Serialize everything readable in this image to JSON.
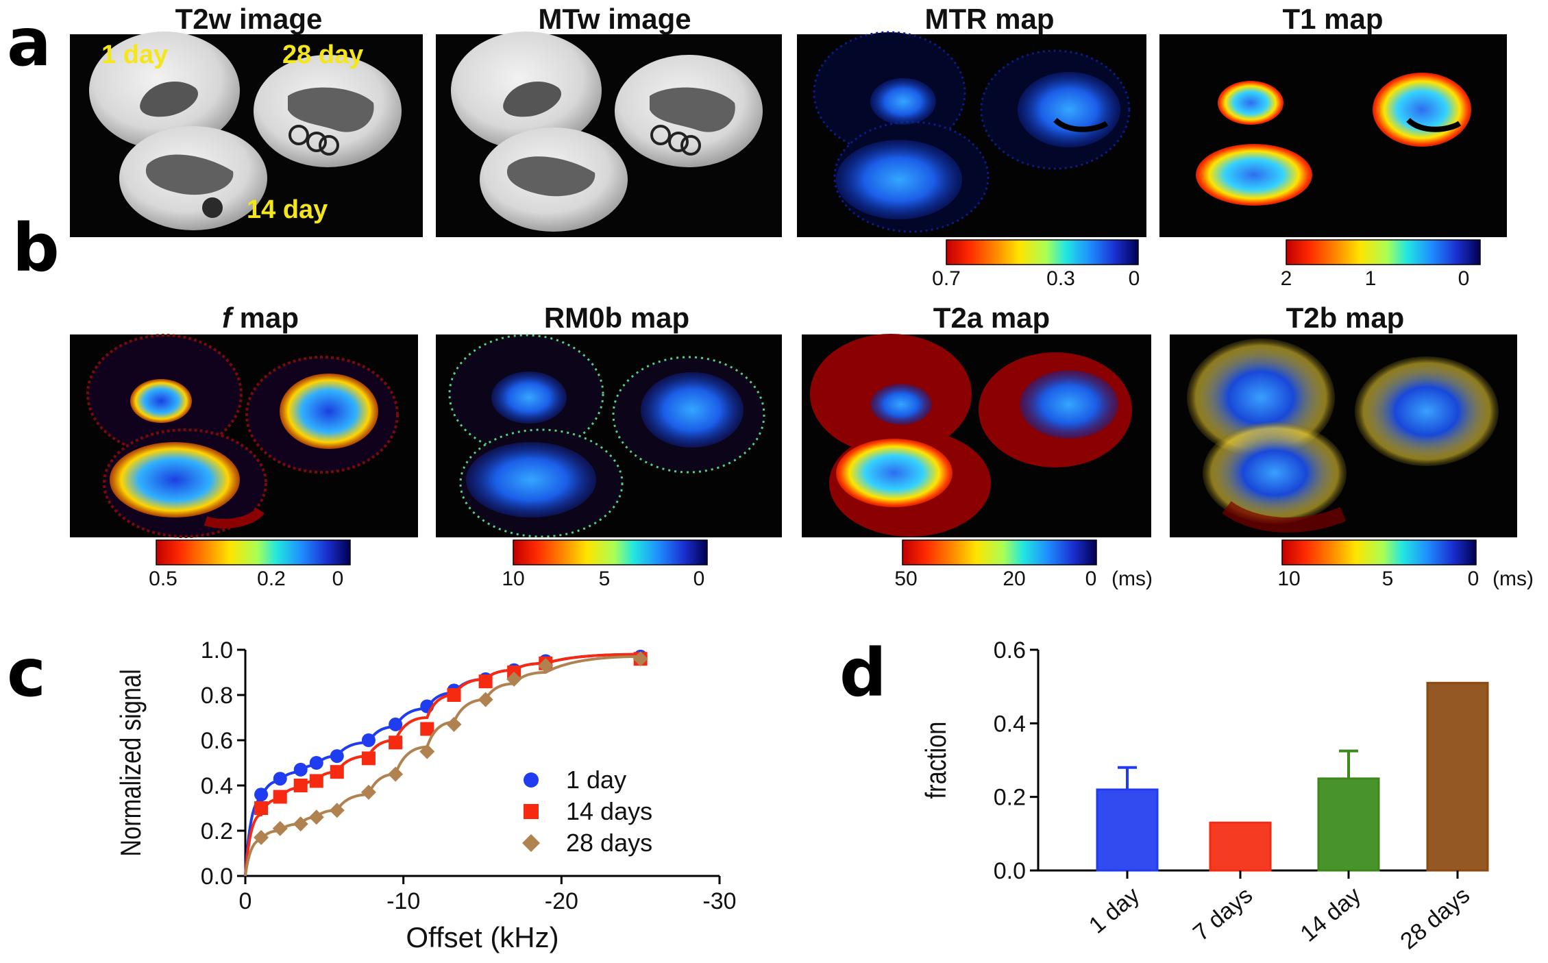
{
  "panel_letters": {
    "a": "a",
    "b": "b",
    "c": "c",
    "d": "d"
  },
  "row_a": {
    "titles": [
      "T2w image",
      "MTw  image",
      "MTR map",
      "T1 map"
    ],
    "labels": {
      "day1": "1 day",
      "day28": "28 day",
      "day14": "14 day"
    },
    "colorbars": [
      {
        "ticks": [
          "0.7",
          "0.3",
          "0"
        ]
      },
      {
        "ticks": [
          "2",
          "1",
          "0"
        ]
      }
    ]
  },
  "row_b": {
    "titles": [
      {
        "italic": "f",
        "rest": " map"
      },
      {
        "text": "RM0b map"
      },
      {
        "text": "T2a map"
      },
      {
        "text": "T2b map"
      }
    ],
    "colorbars": [
      {
        "ticks": [
          "0.5",
          "0.2",
          "0"
        ],
        "unit": ""
      },
      {
        "ticks": [
          "10",
          "5",
          "0"
        ],
        "unit": ""
      },
      {
        "ticks": [
          "50",
          "20",
          "0"
        ],
        "unit": "(ms)"
      },
      {
        "ticks": [
          "10",
          "5",
          "0"
        ],
        "unit": "(ms)"
      }
    ]
  },
  "colors": {
    "day1": "#1f3cf0",
    "day14": "#f52a10",
    "day28": "#b08250",
    "bar_7days": "#f52a10",
    "bar_14day": "#3a8a1a",
    "bar_28days": "#8a4a10",
    "overlay_text": "#f5e61c"
  },
  "chart_data": [
    {
      "type": "scatter",
      "panel": "c",
      "xlabel": "Offset (kHz)",
      "ylabel": "Normalized signal",
      "xlim": [
        0,
        -30
      ],
      "ylim": [
        0.0,
        1.0
      ],
      "xticks": [
        "0",
        "-10",
        "-20",
        "-30"
      ],
      "yticks": [
        "0.0",
        "0.2",
        "0.4",
        "0.6",
        "0.8",
        "1.0"
      ],
      "series": [
        {
          "name": "1 day",
          "marker": "circle",
          "x": [
            -1,
            -2.2,
            -3.5,
            -4.5,
            -5.8,
            -7.8,
            -9.5,
            -11.5,
            -13.2,
            -15.2,
            -17,
            -19,
            -25
          ],
          "y": [
            0.36,
            0.43,
            0.47,
            0.5,
            0.53,
            0.6,
            0.67,
            0.75,
            0.82,
            0.87,
            0.91,
            0.95,
            0.97
          ],
          "fit_y": [
            0.34,
            0.42,
            0.46,
            0.49,
            0.53,
            0.59,
            0.66,
            0.74,
            0.81,
            0.87,
            0.91,
            0.94,
            0.98
          ]
        },
        {
          "name": "14 days",
          "marker": "square",
          "x": [
            -1,
            -2.2,
            -3.5,
            -4.5,
            -5.8,
            -7.8,
            -9.5,
            -11.5,
            -13.2,
            -15.2,
            -17,
            -19,
            -25
          ],
          "y": [
            0.3,
            0.35,
            0.4,
            0.42,
            0.46,
            0.52,
            0.59,
            0.65,
            0.8,
            0.86,
            0.9,
            0.94,
            0.96
          ],
          "fit_y": [
            0.27,
            0.34,
            0.39,
            0.42,
            0.46,
            0.53,
            0.6,
            0.7,
            0.8,
            0.87,
            0.91,
            0.94,
            0.98
          ]
        },
        {
          "name": "28 days",
          "marker": "diamond",
          "x": [
            -1,
            -2.2,
            -3.5,
            -4.5,
            -5.8,
            -7.8,
            -9.5,
            -11.5,
            -13.2,
            -15.2,
            -17,
            -19,
            -25
          ],
          "y": [
            0.17,
            0.21,
            0.23,
            0.26,
            0.29,
            0.37,
            0.45,
            0.55,
            0.67,
            0.78,
            0.87,
            0.93,
            0.96
          ],
          "fit_y": [
            0.16,
            0.2,
            0.23,
            0.26,
            0.29,
            0.36,
            0.45,
            0.57,
            0.68,
            0.78,
            0.85,
            0.9,
            0.97
          ]
        }
      ]
    },
    {
      "type": "bar",
      "panel": "d",
      "ylabel": "fraction",
      "ylim": [
        0.0,
        0.6
      ],
      "yticks": [
        "0.0",
        "0.2",
        "0.4",
        "0.6"
      ],
      "categories": [
        "1 day",
        "7 days",
        "14 day",
        "28 days"
      ],
      "values": [
        0.22,
        0.13,
        0.25,
        0.51
      ],
      "errors": [
        0.06,
        0.0,
        0.075,
        0.0
      ]
    }
  ]
}
